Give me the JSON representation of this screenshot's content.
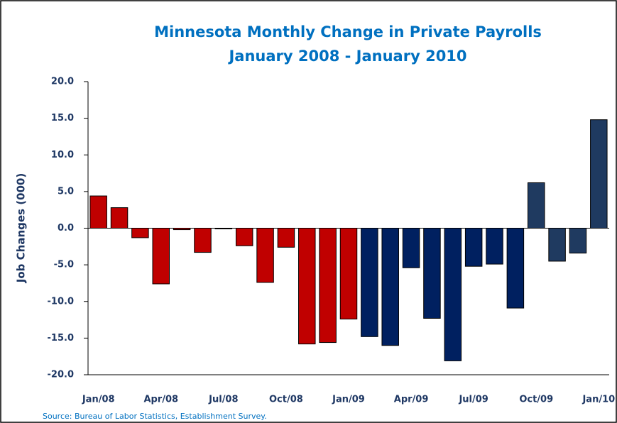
{
  "chart_data": {
    "type": "bar",
    "title": "Minnesota Monthly Change in Private Payrolls",
    "subtitle": "January 2008 - January 2010",
    "y_label": "Job Changes (000)",
    "source": "Source: Bureau of Labor Statistics, Establishment Survey.",
    "categories": [
      "Jan/08",
      null,
      null,
      "Apr/08",
      null,
      null,
      "Jul/08",
      null,
      null,
      "Oct/08",
      null,
      null,
      "Jan/09",
      null,
      null,
      "Apr/09",
      null,
      null,
      "Jul/09",
      null,
      null,
      "Oct/09",
      null,
      null,
      "Jan/10"
    ],
    "values": [
      4.4,
      2.8,
      -1.3,
      -7.6,
      -0.2,
      -3.3,
      -0.1,
      -2.4,
      -7.4,
      -2.6,
      -15.8,
      -15.6,
      -12.4,
      -14.8,
      -16.0,
      -5.4,
      -12.3,
      -18.1,
      -5.2,
      -4.9,
      -10.9,
      6.2,
      -4.5,
      -3.4,
      14.8
    ],
    "colors": [
      "#c00000",
      "#c00000",
      "#c00000",
      "#c00000",
      "#c00000",
      "#c00000",
      "#c00000",
      "#c00000",
      "#c00000",
      "#c00000",
      "#c00000",
      "#c00000",
      "#c00000",
      "#002060",
      "#002060",
      "#002060",
      "#002060",
      "#002060",
      "#002060",
      "#002060",
      "#002060",
      "#1f3a60",
      "#1f3a60",
      "#1f3a60",
      "#1f3a60"
    ],
    "ylim": [
      -20,
      20
    ],
    "yticks": [
      {
        "value": -20,
        "label": "-20.0"
      },
      {
        "value": -15,
        "label": "-15.0"
      },
      {
        "value": -10,
        "label": "-10.0"
      },
      {
        "value": -5,
        "label": "-5.0"
      },
      {
        "value": 0,
        "label": "0.0"
      },
      {
        "value": 5,
        "label": "5.0"
      },
      {
        "value": 10,
        "label": "10.0"
      },
      {
        "value": 15,
        "label": "15.0"
      },
      {
        "value": 20,
        "label": "20.0"
      }
    ],
    "grid": false
  }
}
